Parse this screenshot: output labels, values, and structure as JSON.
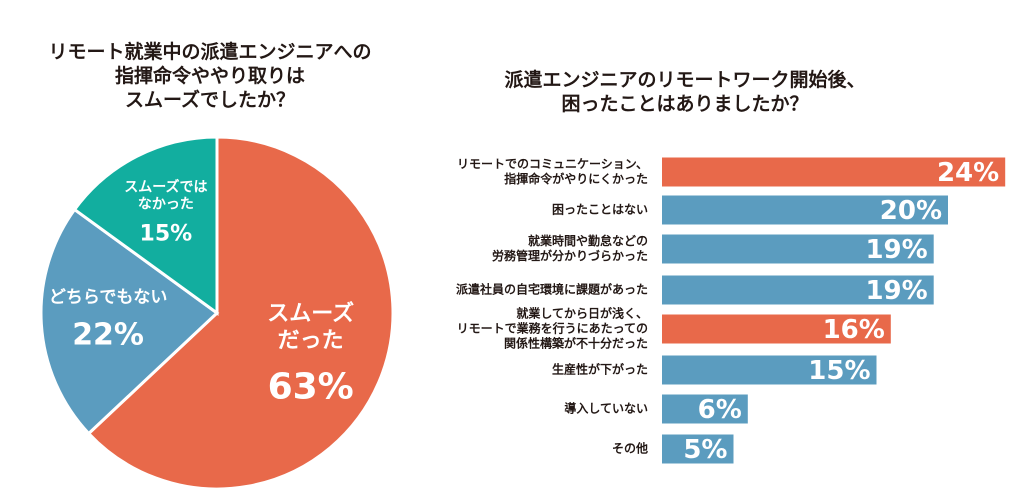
{
  "colors": {
    "orange": "#E8694A",
    "blue": "#5B9CBF",
    "teal": "#12AE9F",
    "text": "#231815"
  },
  "chart_data": [
    {
      "type": "pie",
      "title_lines": [
        "リモート就業中の派遣エンジニアへの",
        "指揮命令ややり取りは",
        "スムーズでしたか？"
      ],
      "slices": [
        {
          "label_lines": [
            "スムーズ",
            "だった"
          ],
          "value": 63,
          "value_label": "63%",
          "color": "#E8694A"
        },
        {
          "label_lines": [
            "どちらでもない"
          ],
          "value": 22,
          "value_label": "22%",
          "color": "#5B9CBF"
        },
        {
          "label_lines": [
            "スムーズでは",
            "なかった"
          ],
          "value": 15,
          "value_label": "15%",
          "color": "#12AE9F"
        }
      ],
      "start_angle_deg": 0,
      "direction": "clockwise"
    },
    {
      "type": "bar",
      "orientation": "horizontal",
      "title_lines": [
        "派遣エンジニアのリモートワーク開始後、",
        "困ったことはありましたか？"
      ],
      "categories": [
        {
          "lines": [
            "リモートでのコミュニケーション、",
            "指揮命令がやりにくかった"
          ],
          "value": 24,
          "value_label": "24%",
          "color": "#E8694A"
        },
        {
          "lines": [
            "困ったことはない"
          ],
          "value": 20,
          "value_label": "20%",
          "color": "#5B9CBF"
        },
        {
          "lines": [
            "就業時間や勤怠などの",
            "労務管理が分かりづらかった"
          ],
          "value": 19,
          "value_label": "19%",
          "color": "#5B9CBF"
        },
        {
          "lines": [
            "派遣社員の自宅環境に課題があった"
          ],
          "value": 19,
          "value_label": "19%",
          "color": "#5B9CBF"
        },
        {
          "lines": [
            "就業してから日が浅く、",
            "リモートで業務を行うにあたっての",
            "関係性構築が不十分だった"
          ],
          "value": 16,
          "value_label": "16%",
          "color": "#E8694A"
        },
        {
          "lines": [
            "生産性が下がった"
          ],
          "value": 15,
          "value_label": "15%",
          "color": "#5B9CBF"
        },
        {
          "lines": [
            "導入していない"
          ],
          "value": 6,
          "value_label": "6%",
          "color": "#5B9CBF"
        },
        {
          "lines": [
            "その他"
          ],
          "value": 5,
          "value_label": "5%",
          "color": "#5B9CBF"
        }
      ],
      "grid": false
    }
  ]
}
